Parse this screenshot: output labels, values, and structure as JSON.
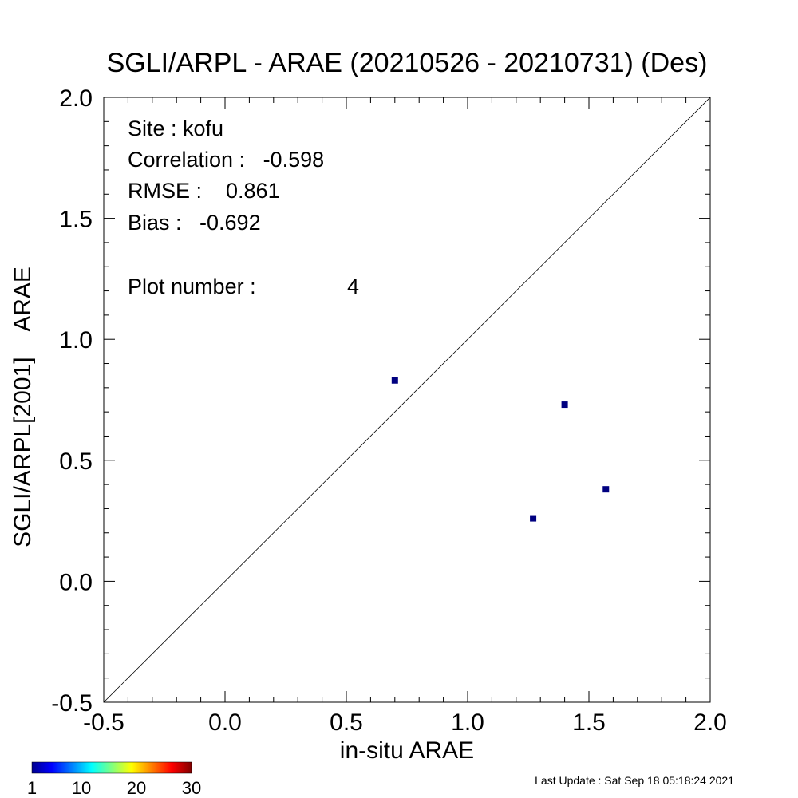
{
  "chart_data": {
    "type": "scatter",
    "title": "SGLI/ARPL - ARAE (20210526 - 20210731) (Des)",
    "xlabel": "in-situ ARAE",
    "ylabel": "SGLI/ARPL[2001]    ARAE",
    "xlim": [
      -0.5,
      2.0
    ],
    "ylim": [
      -0.5,
      2.0
    ],
    "xticks": [
      "-0.5",
      "0.0",
      "0.5",
      "1.0",
      "1.5",
      "2.0"
    ],
    "yticks": [
      "-0.5",
      "0.0",
      "0.5",
      "1.0",
      "1.5",
      "2.0"
    ],
    "reference_line": "1:1",
    "grid": false,
    "points": [
      {
        "x": 0.7,
        "y": 0.83
      },
      {
        "x": 1.4,
        "y": 0.73
      },
      {
        "x": 1.57,
        "y": 0.38
      },
      {
        "x": 1.27,
        "y": 0.26
      }
    ],
    "point_color": "#000080",
    "stats": {
      "site": "Site : kofu",
      "correlation": "Correlation :   -0.598",
      "rmse": "RMSE :    0.861",
      "bias": "Bias :   -0.692",
      "plot_number_label": "Plot number :",
      "plot_number_value": "4"
    },
    "colorbar": {
      "ticks": [
        "1",
        "10",
        "20",
        "30"
      ],
      "colors": [
        "#00008f",
        "#0000ff",
        "#00ffff",
        "#ffff00",
        "#ff0000",
        "#800000"
      ]
    }
  },
  "footer": "Last Update : Sat Sep 18 05:18:24 2021"
}
